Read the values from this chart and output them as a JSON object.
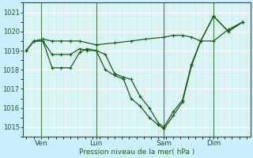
{
  "bg_color": "#cceeff",
  "plot_bg_color": "#d8f4f4",
  "grid_color": "#ffffff",
  "line_color": "#1a5c1a",
  "axis_label": "Pression niveau de la mer( hPa )",
  "xtick_labels": [
    "Ven",
    "Lun",
    "Sam",
    "Dim"
  ],
  "xtick_positions": [
    8,
    38,
    75,
    102
  ],
  "vline_positions": [
    8,
    38,
    75,
    102
  ],
  "ylim": [
    1014.5,
    1021.5
  ],
  "yticks": [
    1015,
    1016,
    1017,
    1018,
    1019,
    1020,
    1021
  ],
  "series": [
    {
      "x": [
        0,
        4,
        9,
        14,
        19,
        24,
        29,
        38,
        48,
        57,
        65,
        75,
        80,
        85,
        90,
        95,
        102,
        110,
        118
      ],
      "y": [
        1019.0,
        1019.5,
        1019.6,
        1019.5,
        1019.5,
        1019.5,
        1019.5,
        1019.3,
        1019.4,
        1019.5,
        1019.6,
        1019.7,
        1019.8,
        1019.8,
        1019.7,
        1019.5,
        1019.5,
        1020.1,
        1020.5
      ]
    },
    {
      "x": [
        0,
        4,
        9,
        14,
        19,
        24,
        29,
        33,
        38,
        43,
        48,
        53,
        57,
        62,
        67,
        72,
        75,
        80,
        85,
        90,
        95,
        102,
        110,
        118
      ],
      "y": [
        1019.0,
        1019.5,
        1019.5,
        1018.8,
        1018.8,
        1018.8,
        1019.1,
        1019.0,
        1019.0,
        1018.8,
        1017.8,
        1017.6,
        1017.5,
        1016.6,
        1016.0,
        1015.2,
        1015.0,
        1015.8,
        1016.4,
        1018.3,
        1019.5,
        1020.8,
        1020.0,
        1020.5
      ]
    },
    {
      "x": [
        0,
        4,
        9,
        14,
        19,
        24,
        29,
        33,
        38,
        43,
        48,
        53,
        57,
        62,
        67,
        72,
        75,
        80,
        85,
        90,
        95,
        102,
        110,
        118
      ],
      "y": [
        1019.0,
        1019.5,
        1019.5,
        1018.1,
        1018.1,
        1018.1,
        1018.9,
        1019.1,
        1019.0,
        1018.0,
        1017.7,
        1017.5,
        1016.5,
        1016.1,
        1015.5,
        1015.1,
        1014.9,
        1015.6,
        1016.3,
        1018.2,
        1019.5,
        1020.8,
        1020.0,
        1020.5
      ]
    }
  ]
}
